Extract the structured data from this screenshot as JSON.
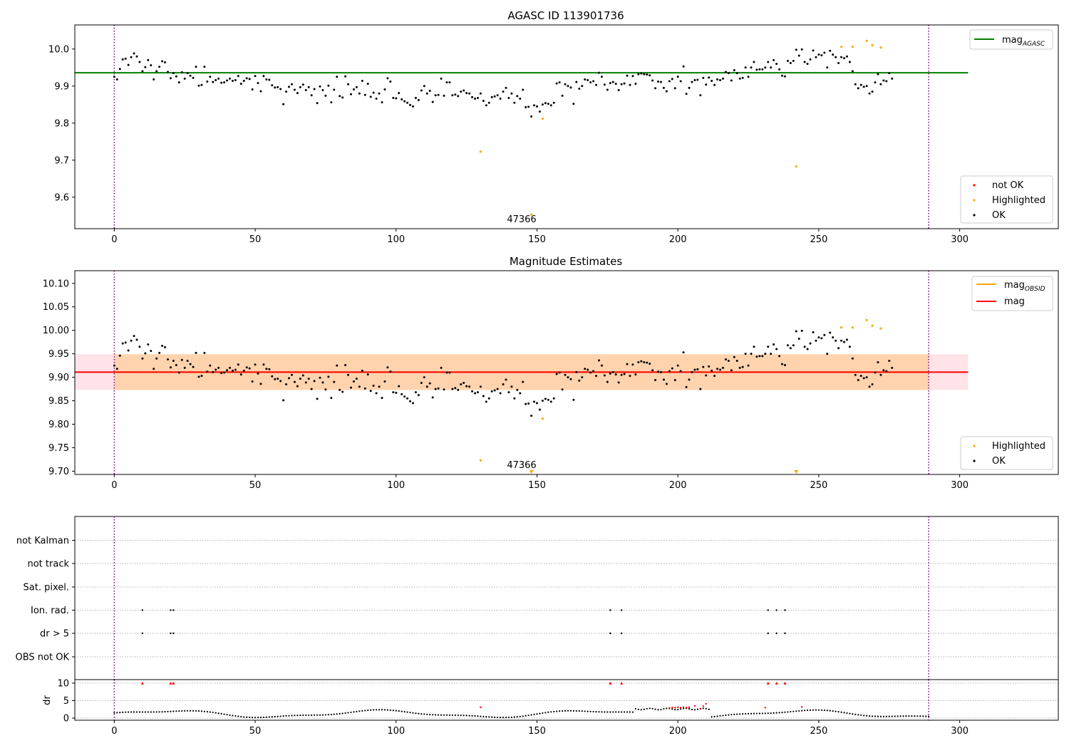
{
  "chart_data": [
    {
      "type": "scatter",
      "title": "AGASC ID 113901736",
      "xlim": [
        -14,
        335
      ],
      "ylim": [
        9.515,
        10.065
      ],
      "yticks": [
        "9.6",
        "9.7",
        "9.8",
        "9.9",
        "10.0"
      ],
      "xticks": [
        "0",
        "50",
        "100",
        "150",
        "200",
        "250",
        "300"
      ],
      "hline": {
        "name": "mag",
        "subscript": "AGASC",
        "y": 9.936,
        "x_range": [
          -14,
          303
        ],
        "color": "#008000"
      },
      "vlines": [
        0,
        289
      ],
      "annotation": {
        "text": "47366",
        "x": 145,
        "y": 9.528
      },
      "legend_lines": [
        {
          "name": "mag",
          "subscript": "AGASC",
          "color": "#008000"
        }
      ],
      "legend_points": [
        {
          "name": "not OK",
          "color": "#ff0000"
        },
        {
          "name": "Highlighted",
          "color": "#ffa500"
        },
        {
          "name": "OK",
          "color": "#000000"
        }
      ],
      "highlighted": [
        [
          130,
          9.723
        ],
        [
          148,
          9.553
        ],
        [
          152,
          9.812
        ],
        [
          242,
          9.683
        ],
        [
          258,
          10.006
        ],
        [
          262,
          10.006
        ],
        [
          267,
          10.022
        ],
        [
          269,
          10.01
        ],
        [
          272,
          10.004
        ]
      ],
      "ok_y": [
        9.925,
        9.918,
        9.946,
        9.972,
        9.974,
        9.957,
        9.978,
        9.988,
        9.98,
        9.965,
        9.94,
        9.951,
        9.97,
        9.956,
        9.918,
        9.94,
        9.952,
        9.967,
        9.964,
        9.938,
        9.921,
        9.935,
        9.926,
        9.91,
        9.937,
        9.92,
        9.935,
        9.928,
        9.922,
        9.952,
        9.901,
        9.903,
        9.952,
        9.912,
        9.925,
        9.911,
        9.916,
        9.92,
        9.909,
        9.91,
        9.915,
        9.92,
        9.914,
        9.916,
        9.927,
        9.906,
        9.914,
        9.921,
        9.919,
        9.891,
        9.927,
        9.908,
        9.886,
        9.927,
        9.918,
        9.917,
        9.902,
        9.896,
        9.897,
        9.892,
        9.851,
        9.885,
        9.898,
        9.905,
        9.89,
        9.881,
        9.897,
        9.904,
        9.889,
        9.897,
        9.875,
        9.892,
        9.854,
        9.899,
        9.889,
        9.874,
        9.901,
        9.856,
        9.89,
        9.925,
        9.873,
        9.869,
        9.926,
        9.905,
        9.878,
        9.891,
        9.897,
        9.88,
        9.914,
        9.876,
        9.906,
        9.871,
        9.882,
        9.866,
        9.88,
        9.856,
        9.891,
        9.921,
        9.912,
        9.868,
        9.867,
        9.881,
        9.864,
        9.859,
        9.855,
        9.849,
        9.845,
        9.868,
        9.862,
        9.888,
        9.9,
        9.88,
        9.887,
        9.857,
        9.875,
        9.876,
        9.92,
        9.874,
        9.91,
        9.91,
        9.875,
        9.877,
        9.873,
        9.885,
        9.888,
        9.881,
        9.88,
        9.87,
        9.866,
        9.868,
        9.88,
        9.86,
        9.848,
        9.855,
        9.87,
        9.872,
        9.875,
        9.866,
        9.885,
        9.895,
        9.868,
        9.88,
        9.855,
        9.873,
        9.866,
        9.89,
        9.843,
        9.844,
        9.818,
        9.848,
        9.845,
        9.831,
        9.85,
        9.854,
        9.852,
        9.848,
        9.855,
        9.907,
        9.91,
        9.874,
        9.905,
        9.9,
        9.896,
        9.852,
        9.911,
        9.893,
        9.9,
        9.918,
        9.916,
        9.91,
        9.913,
        9.903,
        9.936,
        9.925,
        9.904,
        9.89,
        9.908,
        9.911,
        9.906,
        9.889,
        9.905,
        9.907,
        9.928,
        9.903,
        9.927,
        9.906,
        9.932,
        9.934,
        9.932,
        9.931,
        9.929,
        9.915,
        9.894,
        9.912,
        9.911,
        9.895,
        9.886,
        9.913,
        9.919,
        9.894,
        9.925,
        9.913,
        9.953,
        9.879,
        9.895,
        9.911,
        9.916,
        9.917,
        9.875,
        9.922,
        9.904,
        9.923,
        9.914,
        9.903,
        9.918,
        9.916,
        9.92,
        9.938,
        9.935,
        9.915,
        9.943,
        9.935,
        9.92,
        9.922,
        9.95,
        9.925,
        9.95,
        9.965,
        9.944,
        9.945,
        9.945,
        9.95,
        9.965,
        9.95,
        9.97,
        9.96,
        9.945,
        9.928,
        9.926,
        9.968,
        9.962,
        9.968,
        9.998,
        9.982,
        9.999,
        9.965,
        9.96,
        9.972,
        9.996,
        9.978,
        9.985,
        9.983,
        9.99,
        9.95,
        9.995,
        9.985,
        9.978,
        9.962,
        9.978,
        9.975,
        9.98,
        9.965,
        9.94,
        9.905,
        9.894,
        9.903,
        9.898,
        9.9,
        9.88,
        9.885,
        9.91,
        9.932,
        9.905,
        9.915,
        9.913,
        9.935,
        9.92
      ]
    },
    {
      "type": "scatter",
      "title": "Magnitude Estimates",
      "xlim": [
        -14,
        335
      ],
      "ylim": [
        9.693,
        10.127
      ],
      "yticks": [
        "9.70",
        "9.75",
        "9.80",
        "9.85",
        "9.90",
        "9.95",
        "10.00",
        "10.05",
        "10.10"
      ],
      "xticks": [
        "0",
        "50",
        "100",
        "150",
        "200",
        "250",
        "300"
      ],
      "hline": {
        "name": "mag",
        "y": 9.911,
        "x_range": [
          -14,
          303
        ],
        "color": "#ff0000"
      },
      "band_mag": {
        "y_range": [
          9.873,
          9.949
        ],
        "x_range": [
          -14,
          303
        ],
        "color": "#ffc0cb"
      },
      "band_obsid": {
        "y_range": [
          9.873,
          9.949
        ],
        "x_range": [
          0,
          289
        ],
        "color": "#ffa500"
      },
      "vlines": [
        0,
        289
      ],
      "annotation": {
        "text": "47366",
        "x": 145,
        "y": 9.706
      },
      "legend_lines": [
        {
          "name": "mag",
          "subscript": "OBSID",
          "color": "#ffa500"
        },
        {
          "name": "mag",
          "color": "#ff0000"
        }
      ],
      "legend_points": [
        {
          "name": "Highlighted",
          "color": "#ffa500"
        },
        {
          "name": "OK",
          "color": "#000000"
        }
      ],
      "highlighted": [
        [
          130,
          9.723
        ],
        [
          152,
          9.812
        ],
        [
          258,
          10.006
        ],
        [
          262,
          10.006
        ],
        [
          267,
          10.022
        ],
        [
          269,
          10.01
        ],
        [
          272,
          10.004
        ]
      ],
      "clipped_markers": [
        148,
        242
      ]
    },
    {
      "type": "scatter",
      "title": "",
      "xlim": [
        -14,
        335
      ],
      "categories": [
        "not Kalman",
        "not track",
        "Sat. pixel.",
        "Ion. rad.",
        "dr > 5",
        "OBS not OK"
      ],
      "flag_points": {
        "Ion. rad.": [
          10,
          20,
          21,
          176,
          180,
          232,
          235,
          238
        ],
        "dr > 5": [
          10,
          20,
          21,
          176,
          180,
          232,
          235,
          238
        ]
      },
      "vlines": [
        0,
        289
      ]
    },
    {
      "type": "scatter",
      "title": "",
      "xlim": [
        -14,
        335
      ],
      "ylim": [
        -0.6,
        11
      ],
      "ylabel": "dr",
      "yticks": [
        "0",
        "5",
        "10"
      ],
      "xticks": [
        "0",
        "50",
        "100",
        "150",
        "200",
        "250",
        "300"
      ],
      "vlines": [
        0,
        289
      ],
      "red_points": [
        [
          10,
          10
        ],
        [
          20,
          10
        ],
        [
          21,
          10
        ],
        [
          176,
          10
        ],
        [
          180,
          10
        ],
        [
          232,
          10
        ],
        [
          235,
          10
        ],
        [
          238,
          10
        ],
        [
          130,
          3.1
        ],
        [
          197,
          2.9
        ],
        [
          198,
          3.0
        ],
        [
          199,
          3.0
        ],
        [
          200,
          3.1
        ],
        [
          201,
          3.0
        ],
        [
          202,
          3.1
        ],
        [
          203,
          3.0
        ],
        [
          204,
          3.1
        ],
        [
          206,
          3.5
        ],
        [
          208,
          2.6
        ],
        [
          209,
          3.4
        ],
        [
          210,
          4.1
        ],
        [
          231,
          3.0
        ],
        [
          244,
          3.2
        ]
      ]
    }
  ]
}
